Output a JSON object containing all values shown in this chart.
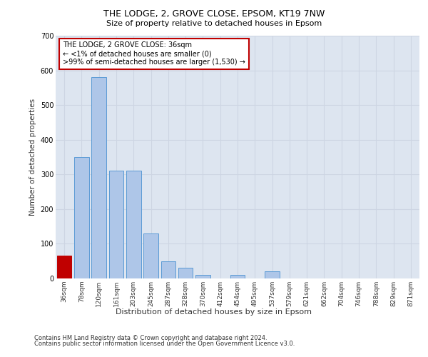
{
  "title1": "THE LODGE, 2, GROVE CLOSE, EPSOM, KT19 7NW",
  "title2": "Size of property relative to detached houses in Epsom",
  "xlabel": "Distribution of detached houses by size in Epsom",
  "ylabel": "Number of detached properties",
  "categories": [
    "36sqm",
    "78sqm",
    "120sqm",
    "161sqm",
    "203sqm",
    "245sqm",
    "287sqm",
    "328sqm",
    "370sqm",
    "412sqm",
    "454sqm",
    "495sqm",
    "537sqm",
    "579sqm",
    "621sqm",
    "662sqm",
    "704sqm",
    "746sqm",
    "788sqm",
    "829sqm",
    "871sqm"
  ],
  "values": [
    65,
    350,
    580,
    310,
    310,
    130,
    50,
    30,
    10,
    0,
    10,
    0,
    20,
    0,
    0,
    0,
    0,
    0,
    0,
    0,
    0
  ],
  "bar_color": "#aec6e8",
  "bar_edge_color": "#5b9bd5",
  "highlight_bar_index": 0,
  "highlight_bar_color": "#c00000",
  "annotation_text": "THE LODGE, 2 GROVE CLOSE: 36sqm\n← <1% of detached houses are smaller (0)\n>99% of semi-detached houses are larger (1,530) →",
  "annotation_box_color": "#c00000",
  "ylim": [
    0,
    700
  ],
  "yticks": [
    0,
    100,
    200,
    300,
    400,
    500,
    600,
    700
  ],
  "grid_color": "#cdd5e3",
  "background_color": "#dde5f0",
  "footer1": "Contains HM Land Registry data © Crown copyright and database right 2024.",
  "footer2": "Contains public sector information licensed under the Open Government Licence v3.0."
}
